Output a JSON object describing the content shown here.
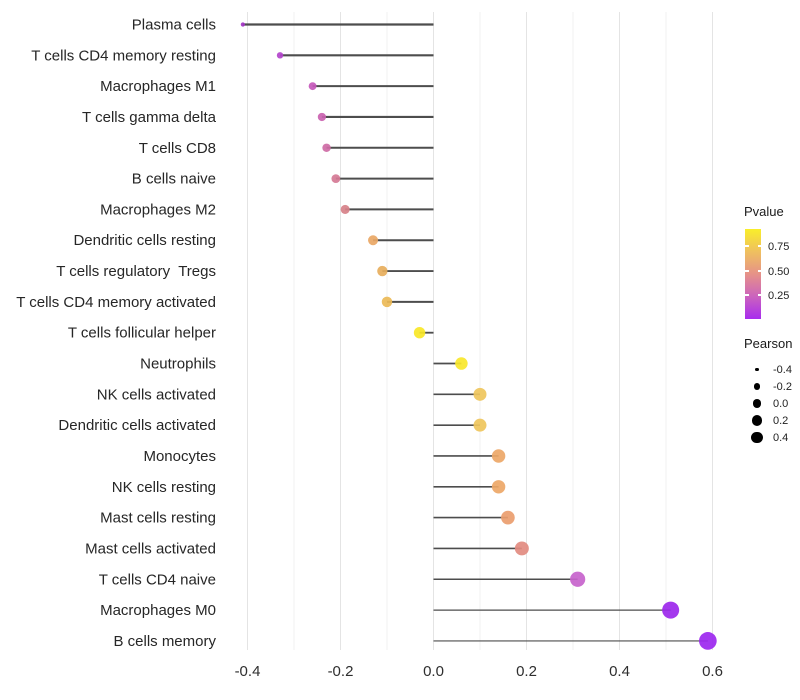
{
  "chart_data": {
    "type": "scatter",
    "variant": "lollipop",
    "orientation": "horizontal",
    "title": "",
    "xlabel": "",
    "ylabel": "",
    "xlim": [
      -0.455,
      0.64
    ],
    "x_ticks": [
      "-0.4",
      "-0.2",
      "0.0",
      "0.2",
      "0.4",
      "0.6"
    ],
    "x_tick_values": [
      -0.4,
      -0.2,
      0.0,
      0.2,
      0.4,
      0.6
    ],
    "grid": "vertical-only, minor every 0.1",
    "legend_position": "right",
    "points": [
      {
        "label": "Plasma cells",
        "pearson": -0.41,
        "color": "#A233C4"
      },
      {
        "label": "T cells CD4 memory resting",
        "pearson": -0.33,
        "color": "#B344CC"
      },
      {
        "label": "Macrophages M1",
        "pearson": -0.26,
        "color": "#C558BB"
      },
      {
        "label": "T cells gamma delta",
        "pearson": -0.24,
        "color": "#CA62B0"
      },
      {
        "label": "T cells CD8",
        "pearson": -0.23,
        "color": "#CE6BA5"
      },
      {
        "label": "B cells naive",
        "pearson": -0.21,
        "color": "#D57A95"
      },
      {
        "label": "Macrophages M2",
        "pearson": -0.19,
        "color": "#D78189"
      },
      {
        "label": "Dendritic cells resting",
        "pearson": -0.13,
        "color": "#E9A765"
      },
      {
        "label": "T cells regulatory  Tregs",
        "pearson": -0.11,
        "color": "#E7AE5C"
      },
      {
        "label": "T cells CD4 memory activated",
        "pearson": -0.1,
        "color": "#EBBA57"
      },
      {
        "label": "T cells follicular helper",
        "pearson": -0.03,
        "color": "#F8E727"
      },
      {
        "label": "Neutrophils",
        "pearson": 0.06,
        "color": "#F8E72B"
      },
      {
        "label": "NK cells activated",
        "pearson": 0.1,
        "color": "#EFC55C"
      },
      {
        "label": "Dendritic cells activated",
        "pearson": 0.1,
        "color": "#EFC55C"
      },
      {
        "label": "Monocytes",
        "pearson": 0.14,
        "color": "#EDA767"
      },
      {
        "label": "NK cells resting",
        "pearson": 0.14,
        "color": "#EDA767"
      },
      {
        "label": "Mast cells resting",
        "pearson": 0.16,
        "color": "#EA9D6E"
      },
      {
        "label": "Mast cells activated",
        "pearson": 0.19,
        "color": "#E28B80"
      },
      {
        "label": "T cells CD4 naive",
        "pearson": 0.31,
        "color": "#C763CC"
      },
      {
        "label": "Macrophages M0",
        "pearson": 0.51,
        "color": "#9C27EC"
      },
      {
        "label": "B cells memory",
        "pearson": 0.59,
        "color": "#9C27EF"
      }
    ]
  },
  "legends": {
    "pvalue": {
      "title": "Pvalue",
      "tick_labels": [
        "0.75",
        "0.50",
        "0.25"
      ],
      "tick_values": [
        0.75,
        0.5,
        0.25
      ],
      "gradient_top_to_bottom": [
        "#F9EE2A",
        "#EFC05F",
        "#E69288",
        "#CB63BE",
        "#A82CEE"
      ]
    },
    "pearson": {
      "title": "Pearson",
      "dot_color": "#000000",
      "entries": [
        {
          "label": "-0.4",
          "value": -0.4
        },
        {
          "label": "-0.2",
          "value": -0.2
        },
        {
          "label": "0.0",
          "value": 0.0
        },
        {
          "label": "0.2",
          "value": 0.2
        },
        {
          "label": "0.4",
          "value": 0.4
        }
      ]
    }
  },
  "colors": {
    "stem": "#4D4D4D",
    "grid_major": "#E4E4E4",
    "grid_minor": "#F2F2F2",
    "axis_text": "#262626",
    "background": "#FFFFFF"
  }
}
